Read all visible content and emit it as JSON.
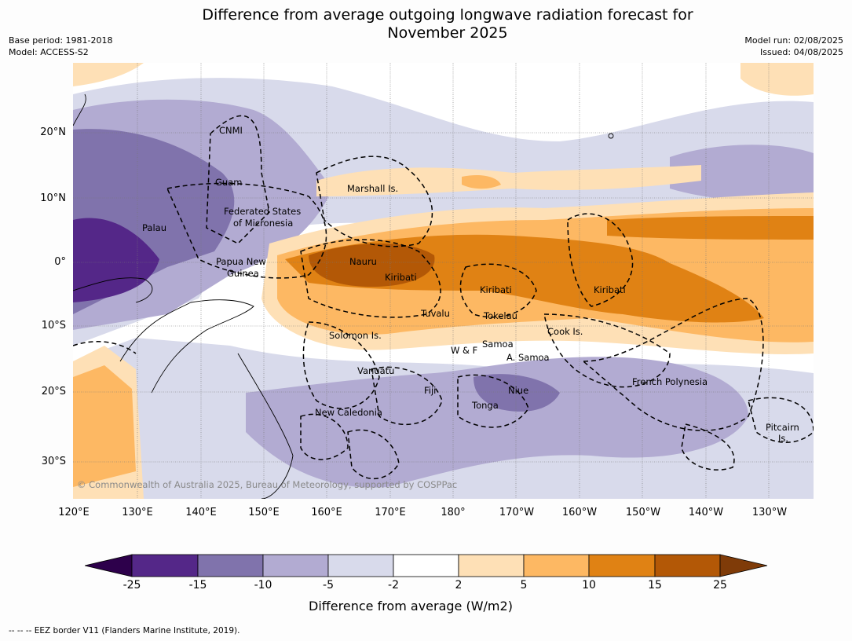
{
  "title_line1": "Difference from average outgoing longwave radiation forecast for",
  "title_line2": "November 2025",
  "meta_left": [
    "Base period: 1981-2018",
    "Model: ACCESS-S2"
  ],
  "meta_right": [
    "Model run: 02/08/2025",
    "Issued: 04/08/2025"
  ],
  "lat_ticks": [
    "20°N",
    "10°N",
    "0°",
    "10°S",
    "20°S",
    "30°S"
  ],
  "lon_ticks": [
    "120°E",
    "130°E",
    "140°E",
    "150°E",
    "160°E",
    "170°E",
    "180°",
    "170°W",
    "160°W",
    "150°W",
    "140°W",
    "130°W"
  ],
  "places": [
    {
      "name": "CNMI"
    },
    {
      "name": "Guam"
    },
    {
      "name": "Marshall Is."
    },
    {
      "name": "Federated States"
    },
    {
      "name": "of Micronesia"
    },
    {
      "name": "Palau"
    },
    {
      "name": "Papua New"
    },
    {
      "name": "Guinea"
    },
    {
      "name": "Nauru"
    },
    {
      "name": "Kiribati"
    },
    {
      "name": "Kiribati"
    },
    {
      "name": "Kiribati"
    },
    {
      "name": "Tuvalu"
    },
    {
      "name": "Tokelau"
    },
    {
      "name": "Solomon Is."
    },
    {
      "name": "Cook Is."
    },
    {
      "name": "W & F"
    },
    {
      "name": "Samoa"
    },
    {
      "name": "A. Samoa"
    },
    {
      "name": "Vanuatu"
    },
    {
      "name": "Fiji"
    },
    {
      "name": "Niue"
    },
    {
      "name": "Tonga"
    },
    {
      "name": "French Polynesia"
    },
    {
      "name": "New Caledonia"
    },
    {
      "name": "Pitcairn"
    },
    {
      "name": "Is."
    }
  ],
  "copyright": "© Commonwealth of Australia 2025, Bureau of Meteorology, supported by COSPPac",
  "colorbar": {
    "title": "Difference from average (W/m2)",
    "ticks": [
      "-25",
      "-15",
      "-10",
      "-5",
      "-2",
      "2",
      "5",
      "10",
      "15",
      "25"
    ],
    "colors": [
      "#2d004b",
      "#542788",
      "#8073ac",
      "#b2abd2",
      "#d8daeb",
      "#ffffff",
      "#fee0b6",
      "#fdb863",
      "#e08214",
      "#b35806",
      "#7f3b08"
    ]
  },
  "footer": "--  --  -- EEZ border V11 (Flanders Marine Institute, 2019)."
}
